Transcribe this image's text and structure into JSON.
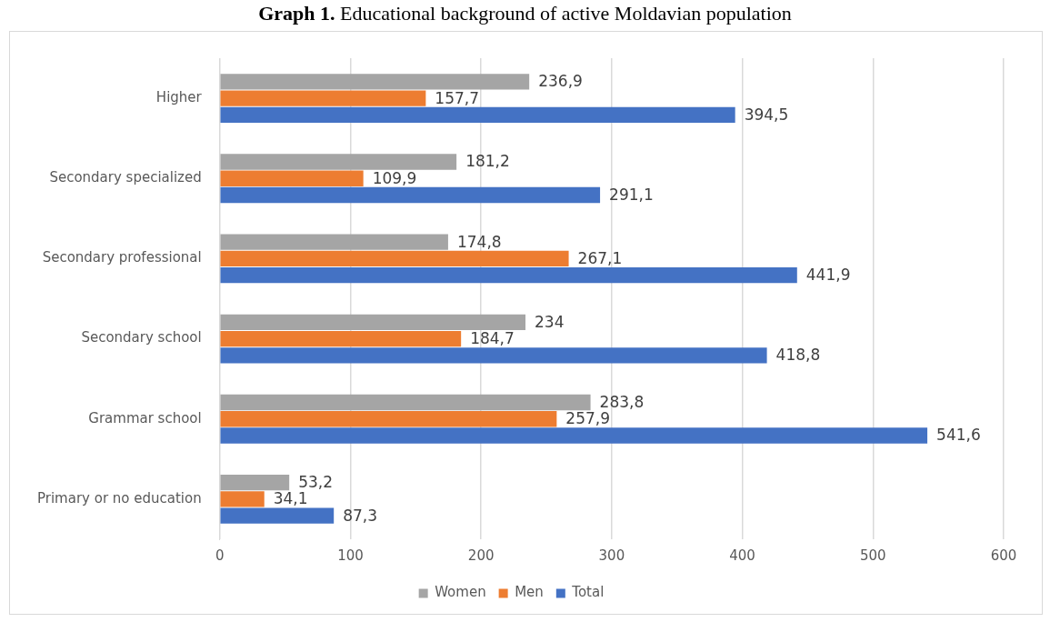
{
  "chart_data": {
    "type": "bar",
    "orientation": "horizontal",
    "title": "Graph 1. Educational background of active Moldavian population",
    "categories": [
      "Higher",
      "Secondary specialized",
      "Secondary professional",
      "Secondary school",
      "Grammar school",
      "Primary or no education"
    ],
    "series": [
      {
        "name": "Women",
        "color": "#a5a5a5",
        "values": [
          236.9,
          181.2,
          174.8,
          234,
          283.8,
          53.2
        ],
        "value_labels": [
          "236,9",
          "181,2",
          "174,8",
          "234",
          "283,8",
          "53,2"
        ]
      },
      {
        "name": "Men",
        "color": "#ed7d31",
        "values": [
          157.7,
          109.9,
          267.1,
          184.7,
          257.9,
          34.1
        ],
        "value_labels": [
          "157,7",
          "109,9",
          "267,1",
          "184,7",
          "257,9",
          "34,1"
        ]
      },
      {
        "name": "Total",
        "color": "#4472c4",
        "values": [
          394.5,
          291.1,
          441.9,
          418.8,
          541.6,
          87.3
        ],
        "value_labels": [
          "394,5",
          "291,1",
          "441,9",
          "418,8",
          "541,6",
          "87,3"
        ]
      }
    ],
    "xlim": [
      0,
      600
    ],
    "xticks": [
      0,
      100,
      200,
      300,
      400,
      500,
      600
    ],
    "grid": "x",
    "legend": "bottom"
  }
}
